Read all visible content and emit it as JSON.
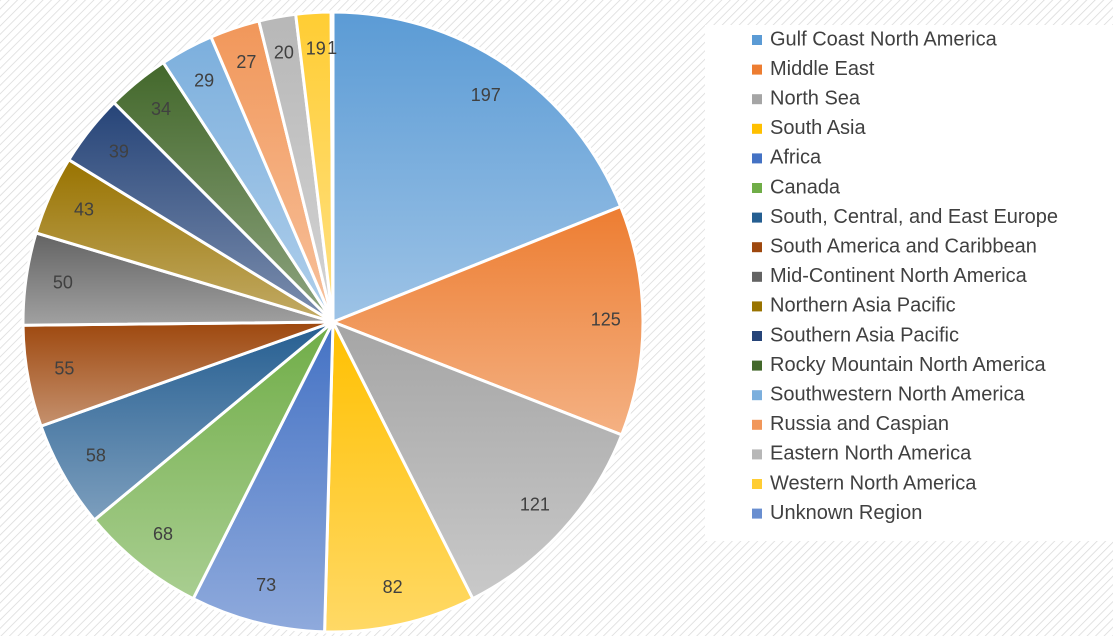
{
  "chart_data": {
    "type": "pie",
    "categories": [
      "Gulf Coast North America",
      "Middle East",
      "North Sea",
      "South Asia",
      "Africa",
      "Canada",
      "South, Central, and East Europe",
      "South America and Caribbean",
      "Mid-Continent North America",
      "Northern Asia Pacific",
      "Southern Asia Pacific",
      "Rocky Mountain North America",
      "Southwestern North America",
      "Russia and Caspian",
      "Eastern North America",
      "Western North America",
      "Unknown Region"
    ],
    "values": [
      197,
      125,
      121,
      82,
      73,
      68,
      58,
      55,
      50,
      43,
      39,
      34,
      29,
      27,
      20,
      19,
      1
    ],
    "colors": [
      "#5b9bd5",
      "#ed7d31",
      "#a5a5a5",
      "#ffc000",
      "#4472c4",
      "#70ad47",
      "#255e91",
      "#9e480e",
      "#636363",
      "#997300",
      "#264478",
      "#43682b",
      "#7cafdd",
      "#f1975a",
      "#b7b7b7",
      "#ffcd33",
      "#698ed0"
    ],
    "legend": "right"
  }
}
